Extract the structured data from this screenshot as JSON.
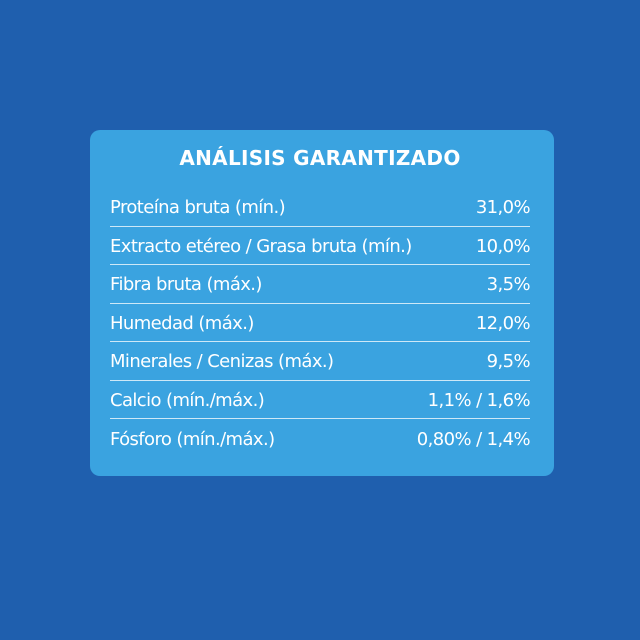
{
  "panel": {
    "title": "ANÁLISIS GARANTIZADO",
    "rows": [
      {
        "label": "Proteína bruta (mín.)",
        "value": "31,0%"
      },
      {
        "label": "Extracto etéreo / Grasa bruta (mín.)",
        "value": "10,0%"
      },
      {
        "label": "Fibra bruta (máx.)",
        "value": "3,5%"
      },
      {
        "label": "Humedad (máx.)",
        "value": "12,0%"
      },
      {
        "label": "Minerales / Cenizas (máx.)",
        "value": "9,5%"
      },
      {
        "label": "Calcio (mín./máx.)",
        "value": "1,1% / 1,6%"
      },
      {
        "label": "Fósforo (mín./máx.)",
        "value": "0,80% / 1,4%"
      }
    ]
  },
  "colors": {
    "background": "#1f5fae",
    "panel": "#3aa3e0",
    "text": "#ffffff"
  }
}
